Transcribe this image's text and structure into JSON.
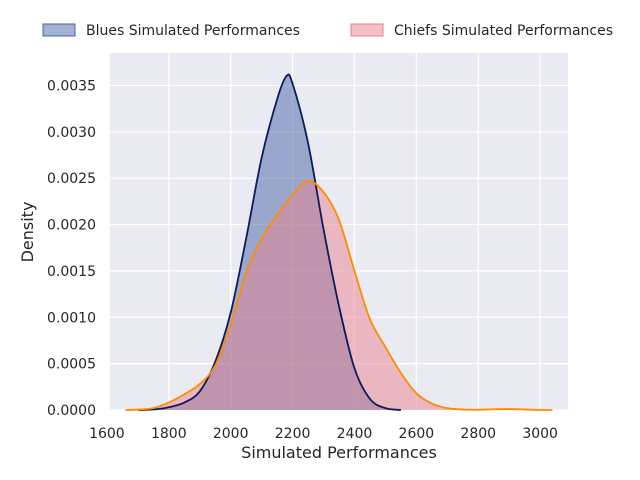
{
  "chart_data": {
    "type": "area",
    "subtype": "kde-density",
    "title": "",
    "xlabel": "Simulated Performances",
    "ylabel": "Density",
    "xlim": [
      1610,
      3090
    ],
    "ylim": [
      0,
      0.00385
    ],
    "xticks": [
      1600,
      1800,
      2000,
      2200,
      2400,
      2600,
      2800,
      3000
    ],
    "xtick_labels": [
      "1600",
      "1800",
      "2000",
      "2200",
      "2400",
      "2600",
      "2800",
      "3000"
    ],
    "yticks": [
      0,
      0.0005,
      0.001,
      0.0015,
      0.002,
      0.0025,
      0.003,
      0.0035
    ],
    "ytick_labels": [
      "0.0000",
      "0.0005",
      "0.0010",
      "0.0015",
      "0.0020",
      "0.0025",
      "0.0030",
      "0.0035"
    ],
    "grid": true,
    "legend_position": "top, above plot",
    "series": [
      {
        "name": "Blues Simulated Performances",
        "fill_color": "#4a63a8",
        "line_color": "#0b1b5c",
        "points": [
          [
            1700,
            0.0
          ],
          [
            1750,
            5e-06
          ],
          [
            1800,
            3e-05
          ],
          [
            1850,
            8e-05
          ],
          [
            1900,
            0.0002
          ],
          [
            1950,
            0.00052
          ],
          [
            2000,
            0.00105
          ],
          [
            2050,
            0.00185
          ],
          [
            2100,
            0.00272
          ],
          [
            2150,
            0.00335
          ],
          [
            2180,
            0.0036
          ],
          [
            2200,
            0.00352
          ],
          [
            2250,
            0.00288
          ],
          [
            2300,
            0.00195
          ],
          [
            2350,
            0.00112
          ],
          [
            2400,
            0.00045
          ],
          [
            2450,
            0.00012
          ],
          [
            2500,
            2e-05
          ],
          [
            2550,
            0.0
          ]
        ]
      },
      {
        "name": "Chiefs Simulated Performances",
        "fill_color": "#e8828f",
        "line_color": "#ff8c00",
        "points": [
          [
            1660,
            0.0
          ],
          [
            1700,
            5e-06
          ],
          [
            1750,
            2e-05
          ],
          [
            1800,
            8e-05
          ],
          [
            1850,
            0.00017
          ],
          [
            1900,
            0.00028
          ],
          [
            1950,
            0.00048
          ],
          [
            2000,
            0.00092
          ],
          [
            2050,
            0.00148
          ],
          [
            2100,
            0.00185
          ],
          [
            2150,
            0.0021
          ],
          [
            2200,
            0.00232
          ],
          [
            2250,
            0.00247
          ],
          [
            2300,
            0.00235
          ],
          [
            2350,
            0.00205
          ],
          [
            2400,
            0.0015
          ],
          [
            2450,
            0.00098
          ],
          [
            2500,
            0.00068
          ],
          [
            2550,
            0.0004
          ],
          [
            2600,
            0.00018
          ],
          [
            2650,
            7e-05
          ],
          [
            2700,
            2e-05
          ],
          [
            2750,
            5e-06
          ],
          [
            2800,
            3e-06
          ],
          [
            2850,
            8e-06
          ],
          [
            2900,
            1e-05
          ],
          [
            2950,
            6e-06
          ],
          [
            3000,
            0.0
          ],
          [
            3040,
            0.0
          ]
        ]
      }
    ]
  }
}
